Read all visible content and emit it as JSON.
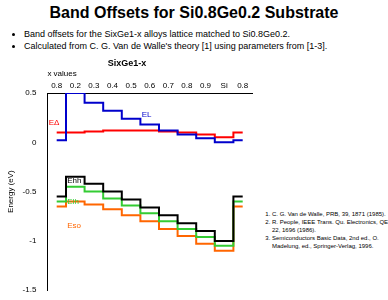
{
  "slide": {
    "title": "Band Offsets for Si0.8Ge0.2 Substrate",
    "bullets": [
      "Band offsets for the SixGe1-x alloys lattice matched to Si0.8Ge0.2.",
      "Calculated from C. G. Van de Walle's theory [1] using parameters from [1-3]."
    ],
    "references": [
      "C. G. Van de Walle, PRB, 39, 1871 (1985).",
      "R. People, IEEE Trans. Qu. Electronics, QE-22, 1696 (1986).",
      "Semiconductors Basic Data, 2nd ed., O. Madelung, ed., Springer-Verlag, 1996."
    ]
  },
  "chart_data": {
    "type": "line",
    "line_style": "stepped",
    "title": "SixGe1-x",
    "x_label": "x values",
    "y_label": "Energy (eV)",
    "categories": [
      "0.8",
      "0.2",
      "0.3",
      "0.4",
      "0.5",
      "0.6",
      "0.7",
      "0.8",
      "0.9",
      "Si",
      "0.8"
    ],
    "series": [
      {
        "name": "EL",
        "color": "#0000cc",
        "values": [
          0.02,
          0.5,
          0.4,
          0.32,
          0.24,
          0.18,
          0.12,
          0.08,
          0.04,
          0.0,
          0.02
        ]
      },
      {
        "name": "EΔ",
        "color": "#ff0000",
        "values": [
          0.1,
          0.1,
          0.11,
          0.12,
          0.12,
          0.12,
          0.11,
          0.1,
          0.08,
          0.05,
          0.1
        ]
      },
      {
        "name": "Ehh",
        "color": "#000000",
        "values": [
          -0.55,
          -0.35,
          -0.42,
          -0.5,
          -0.58,
          -0.66,
          -0.74,
          -0.82,
          -0.9,
          -1.0,
          -0.55
        ]
      },
      {
        "name": "Elh",
        "color": "#33cc33",
        "values": [
          -0.6,
          -0.45,
          -0.5,
          -0.57,
          -0.64,
          -0.72,
          -0.8,
          -0.88,
          -0.96,
          -1.05,
          -0.6
        ]
      },
      {
        "name": "Eso",
        "color": "#ff6600",
        "values": [
          -0.65,
          -0.6,
          -0.63,
          -0.68,
          -0.74,
          -0.8,
          -0.88,
          -0.95,
          -1.03,
          -1.1,
          -0.65
        ]
      }
    ],
    "ylim": [
      -1.5,
      0.5
    ],
    "yticks": [
      -1.5,
      -1,
      -0.5,
      0,
      0.5
    ],
    "grid": false
  }
}
